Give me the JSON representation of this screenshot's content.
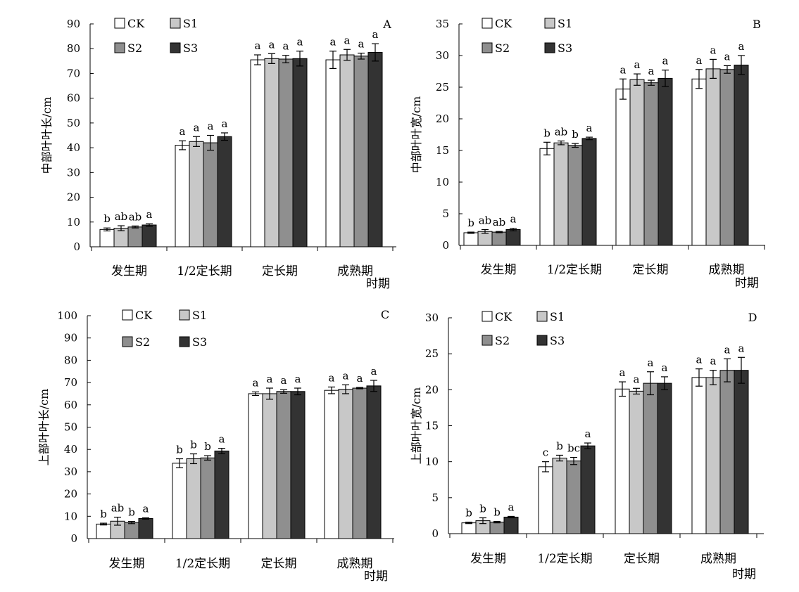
{
  "legend": [
    {
      "name": "CK",
      "color": "#ffffff"
    },
    {
      "name": "S1",
      "color": "#c8c8c8"
    },
    {
      "name": "S2",
      "color": "#8f8f8f"
    },
    {
      "name": "S3",
      "color": "#333333"
    }
  ],
  "chart_data": [
    {
      "type": "bar",
      "panel": "A",
      "ylabel": "中部叶叶长/cm",
      "xlabel": "时期",
      "ylim": [
        0,
        90
      ],
      "yticks": [
        0,
        10,
        20,
        30,
        40,
        50,
        60,
        70,
        80,
        90
      ],
      "categories": [
        "发生期",
        "1/2定长期",
        "定长期",
        "成熟期"
      ],
      "series": [
        {
          "name": "CK",
          "values": [
            7.0,
            41.0,
            75.5,
            75.5
          ],
          "errors": [
            0.6,
            1.8,
            2.0,
            3.5
          ],
          "labels": [
            "b",
            "a",
            "a",
            "a"
          ]
        },
        {
          "name": "S1",
          "values": [
            7.5,
            42.5,
            76.0,
            77.5
          ],
          "errors": [
            1.0,
            2.0,
            2.0,
            2.2
          ],
          "labels": [
            "ab",
            "a",
            "a",
            "a"
          ]
        },
        {
          "name": "S2",
          "values": [
            8.0,
            42.0,
            75.8,
            77.0
          ],
          "errors": [
            0.4,
            3.0,
            1.5,
            1.2
          ],
          "labels": [
            "ab",
            "a",
            "a",
            "a"
          ]
        },
        {
          "name": "S3",
          "values": [
            8.8,
            44.5,
            76.0,
            78.5
          ],
          "errors": [
            0.5,
            1.5,
            3.0,
            3.5
          ],
          "labels": [
            "a",
            "a",
            "a",
            "a"
          ]
        }
      ]
    },
    {
      "type": "bar",
      "panel": "B",
      "ylabel": "中部叶叶宽/cm",
      "xlabel": "时期",
      "ylim": [
        0,
        35
      ],
      "yticks": [
        0,
        5,
        10,
        15,
        20,
        25,
        30,
        35
      ],
      "categories": [
        "发生期",
        "1/2定长期",
        "定长期",
        "成熟期"
      ],
      "series": [
        {
          "name": "CK",
          "values": [
            2.0,
            15.3,
            24.7,
            26.3
          ],
          "errors": [
            0.1,
            1.0,
            1.6,
            1.5
          ],
          "labels": [
            "b",
            "b",
            "a",
            "a"
          ]
        },
        {
          "name": "S1",
          "values": [
            2.2,
            16.2,
            26.2,
            27.9
          ],
          "errors": [
            0.3,
            0.3,
            0.9,
            1.5
          ],
          "labels": [
            "ab",
            "ab",
            "a",
            "a"
          ]
        },
        {
          "name": "S2",
          "values": [
            2.1,
            15.8,
            25.7,
            27.8
          ],
          "errors": [
            0.1,
            0.3,
            0.4,
            0.6
          ],
          "labels": [
            "ab",
            "b",
            "a",
            "a"
          ]
        },
        {
          "name": "S3",
          "values": [
            2.5,
            16.9,
            26.4,
            28.5
          ],
          "errors": [
            0.2,
            0.2,
            1.3,
            1.5
          ],
          "labels": [
            "a",
            "a",
            "a",
            "a"
          ]
        }
      ]
    },
    {
      "type": "bar",
      "panel": "C",
      "ylabel": "上部叶叶长/cm",
      "xlabel": "时期",
      "ylim": [
        0,
        100
      ],
      "yticks": [
        0,
        10,
        20,
        30,
        40,
        50,
        60,
        70,
        80,
        90,
        100
      ],
      "categories": [
        "发生期",
        "1/2定长期",
        "定长期",
        "成熟期"
      ],
      "series": [
        {
          "name": "CK",
          "values": [
            6.5,
            33.8,
            65.0,
            66.5
          ],
          "errors": [
            0.4,
            2.0,
            0.8,
            1.5
          ],
          "labels": [
            "b",
            "b",
            "a",
            "a"
          ]
        },
        {
          "name": "S1",
          "values": [
            7.8,
            35.8,
            65.0,
            67.0
          ],
          "errors": [
            1.8,
            2.2,
            2.5,
            2.0
          ],
          "labels": [
            "ab",
            "b",
            "a",
            "a"
          ]
        },
        {
          "name": "S2",
          "values": [
            7.2,
            36.2,
            66.0,
            67.5
          ],
          "errors": [
            0.5,
            1.0,
            0.8,
            0.3
          ],
          "labels": [
            "b",
            "b",
            "a",
            "a"
          ]
        },
        {
          "name": "S3",
          "values": [
            9.0,
            39.3,
            66.0,
            68.5
          ],
          "errors": [
            0.3,
            1.2,
            1.5,
            2.5
          ],
          "labels": [
            "a",
            "a",
            "a",
            "a"
          ]
        }
      ]
    },
    {
      "type": "bar",
      "panel": "D",
      "ylabel": "上部叶叶宽/cm",
      "xlabel": "时期",
      "ylim": [
        0,
        30
      ],
      "yticks": [
        0,
        5,
        10,
        15,
        20,
        25,
        30
      ],
      "categories": [
        "发生期",
        "1/2定长期",
        "定长期",
        "成熟期"
      ],
      "series": [
        {
          "name": "CK",
          "values": [
            1.5,
            9.3,
            20.1,
            21.7
          ],
          "errors": [
            0.1,
            0.7,
            1.0,
            1.2
          ],
          "labels": [
            "b",
            "c",
            "a",
            "a"
          ]
        },
        {
          "name": "S1",
          "values": [
            1.8,
            10.5,
            19.8,
            21.7
          ],
          "errors": [
            0.4,
            0.4,
            0.4,
            1.0
          ],
          "labels": [
            "b",
            "b",
            "a",
            "a"
          ]
        },
        {
          "name": "S2",
          "values": [
            1.6,
            10.1,
            20.9,
            22.7
          ],
          "errors": [
            0.1,
            0.5,
            1.6,
            1.6
          ],
          "labels": [
            "b",
            "bc",
            "a",
            "a"
          ]
        },
        {
          "name": "S3",
          "values": [
            2.3,
            12.2,
            20.9,
            22.7
          ],
          "errors": [
            0.1,
            0.4,
            0.9,
            1.8
          ],
          "labels": [
            "a",
            "a",
            "a",
            "a"
          ]
        }
      ]
    }
  ]
}
